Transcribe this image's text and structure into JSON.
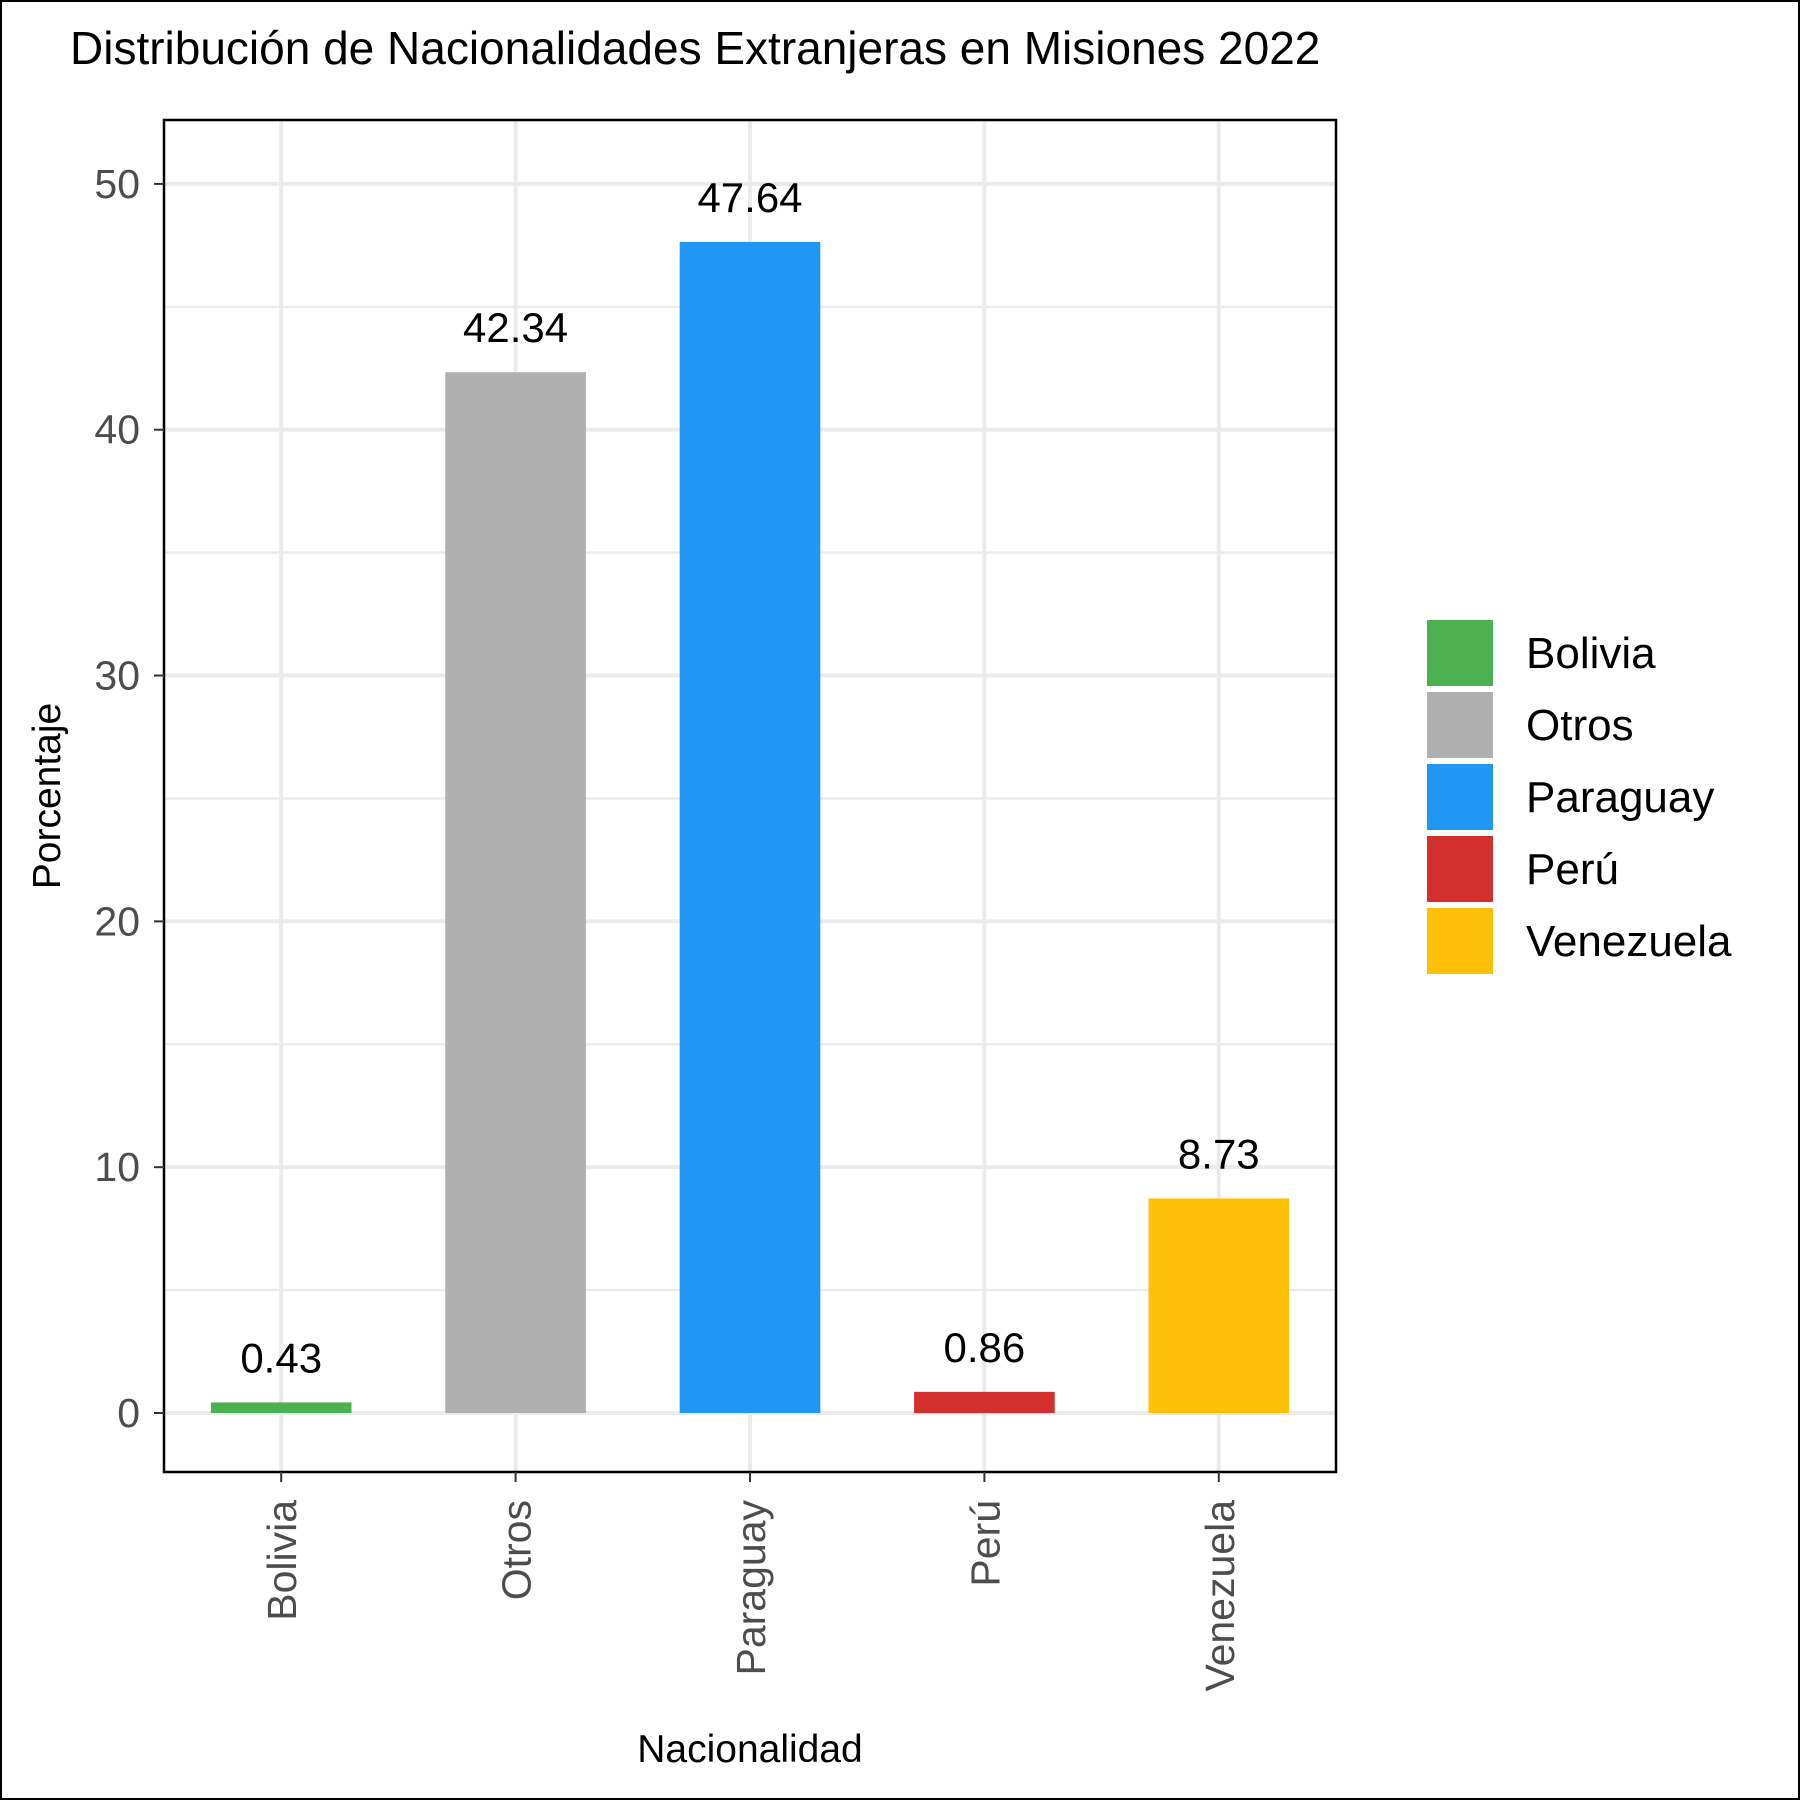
{
  "chart_data": {
    "type": "bar",
    "title": "Distribución de Nacionalidades Extranjeras en Misiones 2022",
    "xlabel": "Nacionalidad",
    "ylabel": "Porcentaje",
    "categories": [
      "Bolivia",
      "Otros",
      "Paraguay",
      "Perú",
      "Venezuela"
    ],
    "values": [
      0.43,
      42.34,
      47.64,
      0.86,
      8.73
    ],
    "value_labels": [
      "0.43",
      "42.34",
      "47.64",
      "0.86",
      "8.73"
    ],
    "colors": [
      "#4caf50",
      "#b0b0b0",
      "#2196f3",
      "#d32f2f",
      "#ffc107"
    ],
    "ylim": [
      -2.4,
      52.6
    ],
    "yticks": [
      0,
      10,
      20,
      30,
      40,
      50
    ],
    "ytick_labels": [
      "0",
      "10",
      "20",
      "30",
      "40",
      "50"
    ],
    "grid": true,
    "legend": {
      "position": "right",
      "entries": [
        "Bolivia",
        "Otros",
        "Paraguay",
        "Perú",
        "Venezuela"
      ]
    }
  }
}
